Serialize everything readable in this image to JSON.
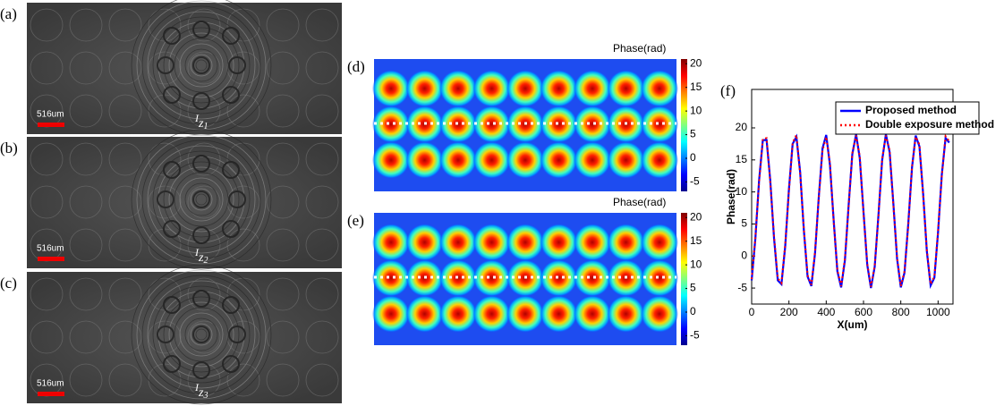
{
  "images": [
    {
      "label": "(a)",
      "scale_bar": "516um",
      "caption": {
        "main": "I",
        "sub": "z",
        "subsub": "1"
      }
    },
    {
      "label": "(b)",
      "scale_bar": "516um",
      "caption": {
        "main": "I",
        "sub": "z",
        "subsub": "2"
      }
    },
    {
      "label": "(c)",
      "scale_bar": "516um",
      "caption": {
        "main": "I",
        "sub": "z",
        "subsub": "3"
      }
    }
  ],
  "phase_maps": [
    {
      "label": "(d)",
      "colorbar_title": "Phase(rad)"
    },
    {
      "label": "(e)",
      "colorbar_title": "Phase(rad)"
    }
  ],
  "colorbar": {
    "clim": [
      -7,
      21
    ],
    "ticks": [
      20,
      15,
      10,
      5,
      0,
      -5
    ]
  },
  "chart_data": {
    "type": "line",
    "panel_label": "(f)",
    "xlabel": "X(um)",
    "ylabel": "Phase(rad)",
    "x": [
      0,
      20,
      40,
      60,
      80,
      100,
      120,
      140,
      160,
      180,
      200,
      220,
      240,
      260,
      280,
      300,
      320,
      340,
      360,
      380,
      400,
      420,
      440,
      460,
      480,
      500,
      520,
      540,
      560,
      580,
      600,
      620,
      640,
      660,
      680,
      700,
      720,
      740,
      760,
      780,
      800,
      820,
      840,
      860,
      880,
      900,
      920,
      940,
      960,
      980,
      1000,
      1020,
      1040,
      1060
    ],
    "series": [
      {
        "name": "Proposed method",
        "color": "#0000ff",
        "style": "solid",
        "values": [
          -3.8,
          2.8,
          11.8,
          18.1,
          18.1,
          11.8,
          2.8,
          -3.8,
          -4.4,
          1.5,
          10.5,
          17.5,
          18.6,
          13.1,
          4.1,
          -3.2,
          -4.7,
          0.4,
          9.2,
          16.8,
          18.9,
          14.2,
          5.5,
          -2.4,
          -4.9,
          -0.7,
          7.8,
          15.9,
          19.0,
          15.3,
          6.9,
          -1.4,
          -5.0,
          -1.7,
          6.4,
          14.9,
          19.0,
          16.2,
          8.3,
          -0.4,
          -4.9,
          -2.6,
          5.0,
          13.8,
          18.8,
          17.1,
          9.6,
          0.7,
          -4.6,
          -3.4,
          3.7,
          12.7,
          18.4,
          17.7
        ]
      },
      {
        "name": "Double exposure method",
        "color": "#ff0000",
        "style": "dotted",
        "values": [
          -3.6,
          3.0,
          11.5,
          18.3,
          18.4,
          11.5,
          3.1,
          -3.5,
          -4.2,
          1.8,
          10.2,
          17.7,
          18.9,
          12.8,
          4.3,
          -3.0,
          -4.5,
          0.7,
          9.0,
          16.5,
          18.6,
          14.5,
          5.2,
          -2.2,
          -4.7,
          -0.4,
          7.5,
          16.1,
          18.8,
          15.6,
          6.6,
          -1.2,
          -4.8,
          -1.5,
          6.1,
          15.2,
          18.8,
          16.5,
          8.0,
          -0.2,
          -4.7,
          -2.4,
          4.7,
          14.0,
          18.6,
          17.4,
          9.3,
          0.9,
          -4.4,
          -3.2,
          3.9,
          12.4,
          18.7,
          17.9
        ]
      }
    ],
    "xlim": [
      0,
      1080
    ],
    "ylim": [
      -7.5,
      26
    ],
    "xticks": [
      0,
      200,
      400,
      600,
      800,
      1000
    ],
    "yticks": [
      -5,
      0,
      5,
      10,
      15,
      20
    ]
  }
}
